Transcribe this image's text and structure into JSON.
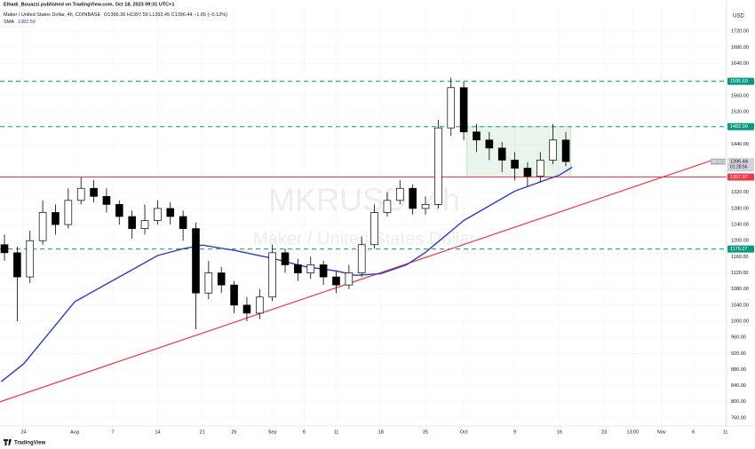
{
  "chart_data": {
    "type": "candlestick",
    "published": "Elhadi_Bouazzi published on TradingView.com, Oct 18, 2023 09:31 UTC+1",
    "title": "Maker / United States Dollar, 4h, COINBASE",
    "ohlc_text": "O1396.36 H1397.59 L1392.45 C1396.44 −1.65 (−0.12%)",
    "watermark": "MKRUSD, 4h",
    "watermark_subtitle": "Maker / United States Dollar",
    "currency": "USD",
    "footer": "TradingView",
    "xlim": [
      201.3,
      315.2
    ],
    "xticks": [
      {
        "value": 205,
        "label": "24"
      },
      {
        "value": 213,
        "label": "Aug"
      },
      {
        "value": 219,
        "label": "7"
      },
      {
        "value": 226,
        "label": "14"
      },
      {
        "value": 233,
        "label": "21"
      },
      {
        "value": 238,
        "label": "26"
      },
      {
        "value": 244,
        "label": "Sep"
      },
      {
        "value": 249,
        "label": "6"
      },
      {
        "value": 254,
        "label": "11"
      },
      {
        "value": 261,
        "label": "18"
      },
      {
        "value": 268,
        "label": "25"
      },
      {
        "value": 274,
        "label": "Oct"
      },
      {
        "value": 282,
        "label": "9"
      },
      {
        "value": 289,
        "label": "16"
      },
      {
        "value": 296,
        "label": "23"
      },
      {
        "value": 300.5,
        "label": "13:00"
      },
      {
        "value": 305,
        "label": "Nov"
      },
      {
        "value": 310,
        "label": "6"
      },
      {
        "value": 315,
        "label": "11"
      }
    ],
    "ylim": [
      740,
      1780
    ],
    "yticks": [
      {
        "value": 760,
        "label": "760.00"
      },
      {
        "value": 800,
        "label": "800.00"
      },
      {
        "value": 840,
        "label": "840.00"
      },
      {
        "value": 880,
        "label": "880.00"
      },
      {
        "value": 920,
        "label": "920.00"
      },
      {
        "value": 960,
        "label": "960.00"
      },
      {
        "value": 1000,
        "label": "1000.00"
      },
      {
        "value": 1040,
        "label": "1040.00"
      },
      {
        "value": 1080,
        "label": "1080.00"
      },
      {
        "value": 1120,
        "label": "1120.00"
      },
      {
        "value": 1160,
        "label": "1160.00"
      },
      {
        "value": 1200,
        "label": "1200.00"
      },
      {
        "value": 1240,
        "label": "1240.00"
      },
      {
        "value": 1280,
        "label": "1280.00"
      },
      {
        "value": 1320,
        "label": "1320.00"
      },
      {
        "value": 1440,
        "label": "1440.00"
      },
      {
        "value": 1520,
        "label": "1520.00"
      },
      {
        "value": 1560,
        "label": "1560.00"
      },
      {
        "value": 1640,
        "label": "1640.00"
      },
      {
        "value": 1680,
        "label": "1680.00"
      },
      {
        "value": 1720,
        "label": "1720.00"
      }
    ],
    "grid": true,
    "candles": {
      "up_color": "#ffffff",
      "down_color": "#000000",
      "x": [
        202,
        204,
        206,
        208,
        210,
        212,
        214,
        216,
        218,
        220,
        222,
        224,
        226,
        228,
        230,
        232,
        234,
        236,
        238,
        240,
        242,
        244,
        246,
        248,
        250,
        252,
        254,
        256,
        258,
        260,
        262,
        264,
        266,
        268,
        270,
        272,
        274,
        276,
        278,
        280,
        282,
        284,
        286,
        288,
        290
      ],
      "open": [
        1190,
        1170,
        1110,
        1200,
        1270,
        1240,
        1300,
        1330,
        1310,
        1290,
        1260,
        1230,
        1250,
        1280,
        1260,
        1230,
        1070,
        1120,
        1090,
        1040,
        1020,
        1060,
        1170,
        1140,
        1120,
        1140,
        1110,
        1090,
        1120,
        1190,
        1270,
        1300,
        1330,
        1280,
        1290,
        1480,
        1580,
        1470,
        1450,
        1430,
        1400,
        1380,
        1360,
        1400,
        1450
      ],
      "high": [
        1215,
        1185,
        1225,
        1300,
        1290,
        1330,
        1357,
        1350,
        1330,
        1300,
        1275,
        1290,
        1300,
        1295,
        1275,
        1245,
        1150,
        1135,
        1100,
        1060,
        1080,
        1190,
        1180,
        1155,
        1160,
        1150,
        1125,
        1140,
        1210,
        1290,
        1320,
        1350,
        1340,
        1310,
        1500,
        1605,
        1595,
        1490,
        1470,
        1445,
        1420,
        1395,
        1420,
        1490,
        1470
      ],
      "low": [
        1150,
        1000,
        1095,
        1190,
        1215,
        1230,
        1290,
        1295,
        1270,
        1240,
        1205,
        1215,
        1240,
        1240,
        1200,
        980,
        1055,
        1070,
        1020,
        1000,
        1005,
        1050,
        1120,
        1100,
        1105,
        1090,
        1070,
        1080,
        1110,
        1180,
        1260,
        1290,
        1265,
        1265,
        1280,
        1460,
        1450,
        1420,
        1400,
        1370,
        1350,
        1335,
        1345,
        1390,
        1385
      ],
      "close": [
        1170,
        1110,
        1200,
        1270,
        1240,
        1300,
        1330,
        1310,
        1290,
        1260,
        1230,
        1250,
        1280,
        1260,
        1230,
        1070,
        1120,
        1090,
        1040,
        1020,
        1060,
        1170,
        1140,
        1120,
        1140,
        1110,
        1090,
        1120,
        1190,
        1270,
        1300,
        1330,
        1280,
        1290,
        1480,
        1580,
        1470,
        1450,
        1430,
        1400,
        1380,
        1360,
        1400,
        1450,
        1396.44
      ]
    },
    "sma": {
      "name": "SMA",
      "value_label": "1382.50",
      "color": "#2f3cc2",
      "x": [
        201.5,
        205,
        209,
        213,
        226,
        230,
        233,
        238,
        244,
        249,
        254,
        257,
        261,
        265,
        268,
        274,
        282,
        289,
        291
      ],
      "values": [
        850,
        894,
        971,
        1048,
        1163,
        1180,
        1189,
        1176,
        1156,
        1136,
        1125,
        1114,
        1118,
        1140,
        1171,
        1250,
        1323,
        1363,
        1382.5
      ]
    },
    "trendline": {
      "color": "#f23645",
      "x": [
        201.3,
        313
      ],
      "values": [
        800,
        1400
      ]
    },
    "levels": [
      {
        "value": 1595.69,
        "label": "1595.69",
        "color": "#089981",
        "style": "dashed"
      },
      {
        "value": 1482.99,
        "label": "1482.99",
        "color": "#089981",
        "style": "dashed"
      },
      {
        "value": 1179.27,
        "label": "1179.27",
        "color": "#089981",
        "style": "dashed"
      },
      {
        "value": 1357.97,
        "label": "1357.97",
        "color": "#f23645",
        "style": "solid"
      }
    ],
    "range_box": {
      "x": [
        274.5,
        290.8
      ],
      "values": [
        1357.97,
        1482.99
      ],
      "color": "#4caf50"
    },
    "last_price": {
      "symbol": "MKRUSD",
      "value": 1396.44,
      "label": "1396.44",
      "countdown": "01:28:56"
    }
  }
}
